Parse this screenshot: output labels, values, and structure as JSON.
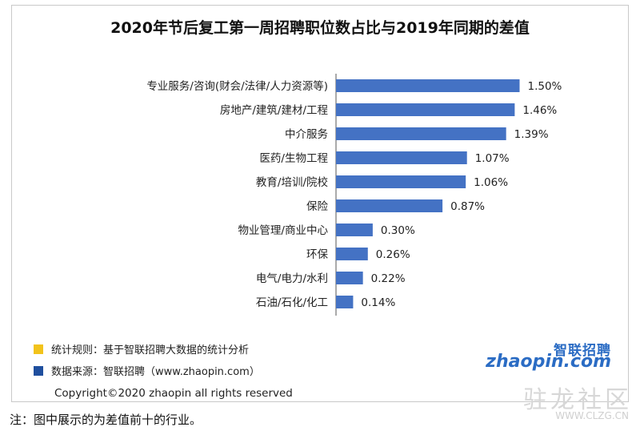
{
  "title": "2020年节后复工第一周招聘职位数占比与2019年同期的差值",
  "chart_data": {
    "type": "bar",
    "orientation": "horizontal",
    "title": "2020年节后复工第一周招聘职位数占比与2019年同期的差值",
    "categories": [
      "专业服务/咨询(财会/法律/人力资源等)",
      "房地产/建筑/建材/工程",
      "中介服务",
      "医药/生物工程",
      "教育/培训/院校",
      "保险",
      "物业管理/商业中心",
      "环保",
      "电气/电力/水利",
      "石油/石化/化工"
    ],
    "values": [
      1.5,
      1.46,
      1.39,
      1.07,
      1.06,
      0.87,
      0.3,
      0.26,
      0.22,
      0.14
    ],
    "value_labels": [
      "1.50%",
      "1.46%",
      "1.39%",
      "1.07%",
      "1.06%",
      "0.87%",
      "0.30%",
      "0.26%",
      "0.22%",
      "0.14%"
    ],
    "xlabel": "",
    "ylabel": "",
    "grid": false,
    "bar_color": "#4472c4"
  },
  "legend": [
    {
      "color": "#f2c31b",
      "text": "统计规则：基于智联招聘大数据的统计分析"
    },
    {
      "color": "#1f4f9e",
      "text": "数据来源：智联招聘（www.zhaopin.com）"
    }
  ],
  "logo": {
    "cn": "智联招聘",
    "en": "zhaopin.com"
  },
  "copyright": "Copyright©2020 zhaopin all rights reserved",
  "note": "注：图中展示的为差值前十的行业。",
  "watermark": {
    "cn": "驻龙社区",
    "url": "WWW.CLZG.CN"
  }
}
